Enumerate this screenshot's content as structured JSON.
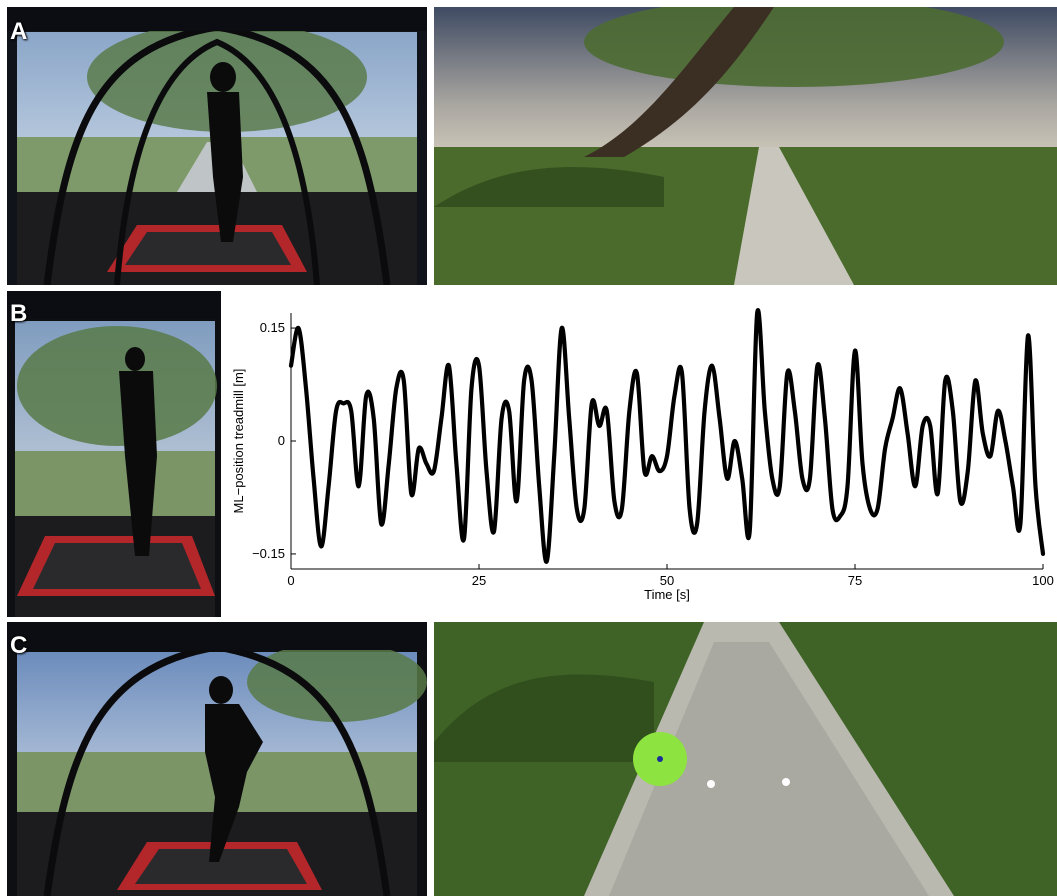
{
  "figure": {
    "panel_labels": [
      "A",
      "B",
      "C"
    ]
  },
  "chart_data": {
    "type": "line",
    "xlabel": "Time [s]",
    "ylabel": "ML−position treadmill [m]",
    "xlim": [
      0,
      100
    ],
    "ylim": [
      -0.17,
      0.17
    ],
    "xticks": [
      0,
      25,
      50,
      75,
      100
    ],
    "xtick_labels": [
      "0",
      "25",
      "50",
      "75",
      "100"
    ],
    "yticks": [
      -0.15,
      0,
      0.15
    ],
    "ytick_labels": [
      "−0.15",
      "0",
      "0.15"
    ],
    "grid": false,
    "series": [
      {
        "color": "#000000",
        "x": [
          0,
          1,
          2,
          3,
          4,
          5,
          6,
          7,
          8,
          9,
          10,
          11,
          12,
          13,
          14,
          15,
          16,
          17,
          18,
          19,
          20,
          21,
          22,
          23,
          24,
          25,
          26,
          27,
          28,
          29,
          30,
          31,
          32,
          33,
          34,
          35,
          36,
          37,
          38,
          39,
          40,
          41,
          42,
          43,
          44,
          45,
          46,
          47,
          48,
          49,
          50,
          51,
          52,
          53,
          54,
          55,
          56,
          57,
          58,
          59,
          60,
          61,
          62,
          63,
          64,
          65,
          66,
          67,
          68,
          69,
          70,
          71,
          72,
          73,
          74,
          75,
          76,
          77,
          78,
          79,
          80,
          81,
          82,
          83,
          84,
          85,
          86,
          87,
          88,
          89,
          90,
          91,
          92,
          93,
          94,
          95,
          96,
          97,
          98,
          99,
          100
        ],
        "values": [
          0.1,
          0.15,
          0.07,
          -0.05,
          -0.14,
          -0.06,
          0.04,
          0.05,
          0.04,
          -0.06,
          0.06,
          0.03,
          -0.11,
          -0.03,
          0.07,
          0.08,
          -0.07,
          -0.01,
          -0.03,
          -0.04,
          0.03,
          0.1,
          -0.03,
          -0.13,
          0.07,
          0.1,
          -0.04,
          -0.12,
          0.03,
          0.04,
          -0.08,
          0.08,
          0.08,
          -0.06,
          -0.16,
          -0.02,
          0.15,
          0.03,
          -0.09,
          -0.09,
          0.05,
          0.02,
          0.04,
          -0.08,
          -0.09,
          0.04,
          0.09,
          -0.04,
          -0.02,
          -0.04,
          -0.02,
          0.06,
          0.09,
          -0.09,
          -0.11,
          0.04,
          0.1,
          0.03,
          -0.05,
          0.0,
          -0.05,
          -0.12,
          0.17,
          0.04,
          -0.05,
          -0.06,
          0.09,
          0.04,
          -0.05,
          -0.05,
          0.1,
          0.03,
          -0.09,
          -0.1,
          -0.06,
          0.12,
          -0.03,
          -0.09,
          -0.09,
          -0.01,
          0.03,
          0.07,
          0.01,
          -0.06,
          0.02,
          0.02,
          -0.07,
          0.08,
          0.04,
          -0.08,
          -0.04,
          0.08,
          0.01,
          -0.02,
          0.04,
          0.0,
          -0.06,
          -0.11,
          0.14,
          -0.06,
          -0.15
        ]
      }
    ]
  }
}
